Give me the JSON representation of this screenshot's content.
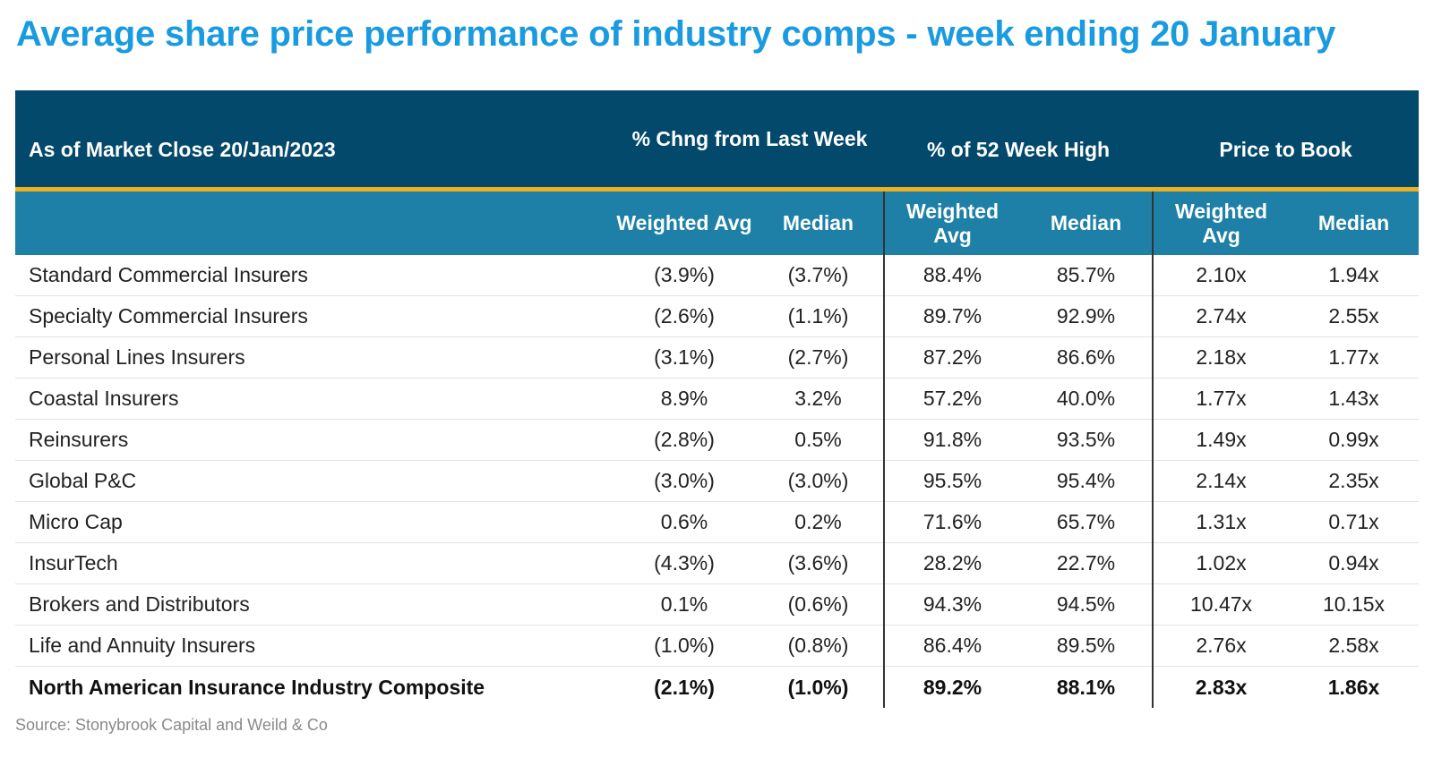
{
  "title": "Average share price performance of industry comps - week ending 20 January",
  "header": {
    "as_of": "As of Market Close 20/Jan/2023",
    "group1": "% Chng from Last Week",
    "group2": "% of 52 Week High",
    "group3": "Price to Book",
    "sub": [
      "Weighted Avg",
      "Median",
      "Weighted Avg",
      "Median",
      "Weighted Avg",
      "Median"
    ]
  },
  "rows": [
    {
      "name": "Standard Commercial Insurers",
      "values": [
        "(3.9%)",
        "(3.7%)",
        "88.4%",
        "85.7%",
        "2.10x",
        "1.94x"
      ]
    },
    {
      "name": "Specialty Commercial Insurers",
      "values": [
        "(2.6%)",
        "(1.1%)",
        "89.7%",
        "92.9%",
        "2.74x",
        "2.55x"
      ]
    },
    {
      "name": "Personal Lines Insurers",
      "values": [
        "(3.1%)",
        "(2.7%)",
        "87.2%",
        "86.6%",
        "2.18x",
        "1.77x"
      ]
    },
    {
      "name": "Coastal Insurers",
      "values": [
        "8.9%",
        "3.2%",
        "57.2%",
        "40.0%",
        "1.77x",
        "1.43x"
      ]
    },
    {
      "name": "Reinsurers",
      "values": [
        "(2.8%)",
        "0.5%",
        "91.8%",
        "93.5%",
        "1.49x",
        "0.99x"
      ]
    },
    {
      "name": "Global P&C",
      "values": [
        "(3.0%)",
        "(3.0%)",
        "95.5%",
        "95.4%",
        "2.14x",
        "2.35x"
      ]
    },
    {
      "name": "Micro Cap",
      "values": [
        "0.6%",
        "0.2%",
        "71.6%",
        "65.7%",
        "1.31x",
        "0.71x"
      ]
    },
    {
      "name": "InsurTech",
      "values": [
        "(4.3%)",
        "(3.6%)",
        "28.2%",
        "22.7%",
        "1.02x",
        "0.94x"
      ]
    },
    {
      "name": "Brokers and Distributors",
      "values": [
        "0.1%",
        "(0.6%)",
        "94.3%",
        "94.5%",
        "10.47x",
        "10.15x"
      ]
    },
    {
      "name": "Life and Annuity Insurers",
      "values": [
        "(1.0%)",
        "(0.8%)",
        "86.4%",
        "89.5%",
        "2.76x",
        "2.58x"
      ]
    }
  ],
  "total": {
    "name": "North American Insurance Industry Composite",
    "values": [
      "(2.1%)",
      "(1.0%)",
      "89.2%",
      "88.1%",
      "2.83x",
      "1.86x"
    ]
  },
  "source": "Source: Stonybrook Capital and Weild & Co",
  "colors": {
    "title": "#1a9be0",
    "header_dark": "#03496b",
    "header_light": "#1e80a7",
    "accent_line": "#f2b01e"
  }
}
